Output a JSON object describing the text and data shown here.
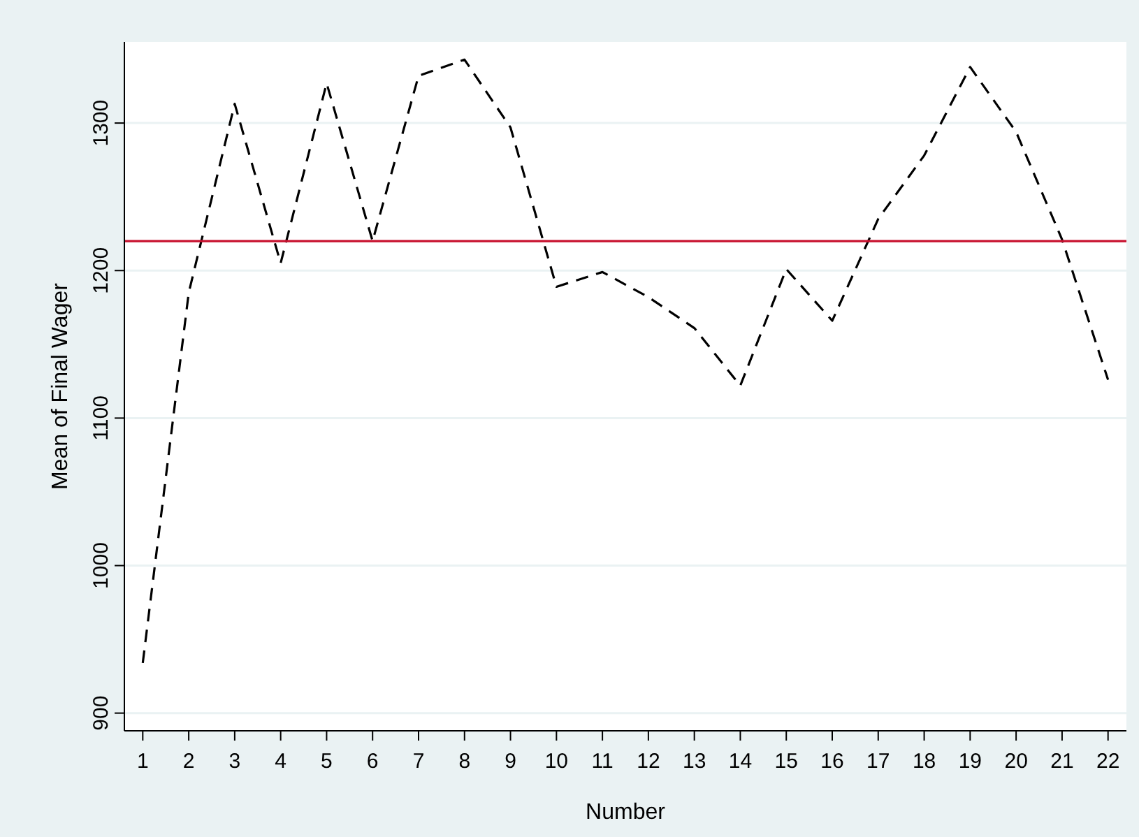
{
  "chart_data": {
    "type": "line",
    "xlabel": "Number",
    "ylabel": "Mean of Final Wager",
    "x": [
      1,
      2,
      3,
      4,
      5,
      6,
      7,
      8,
      9,
      10,
      11,
      12,
      13,
      14,
      15,
      16,
      17,
      18,
      19,
      20,
      21,
      22
    ],
    "series": [
      {
        "color": "#000000",
        "values": [
          934,
          1185,
          1313,
          1205,
          1327,
          1220,
          1332,
          1343,
          1297,
          1189,
          1199,
          1182,
          1161,
          1122,
          1201,
          1166,
          1235,
          1278,
          1338,
          1294,
          1221,
          1126
        ]
      }
    ],
    "xlim": [
      0.6,
      22.4
    ],
    "xticks": [
      1,
      2,
      3,
      4,
      5,
      6,
      7,
      8,
      9,
      10,
      11,
      12,
      13,
      14,
      15,
      16,
      17,
      18,
      19,
      20,
      21,
      22
    ],
    "ylim": [
      888,
      1355
    ],
    "yticks": [
      900,
      1000,
      1100,
      1200,
      1300
    ],
    "grid": "y",
    "line_style": "dashed",
    "marker": "none",
    "ref_lines": [
      {
        "axis": "y",
        "value": 1220,
        "color": "#c8102e"
      }
    ]
  }
}
